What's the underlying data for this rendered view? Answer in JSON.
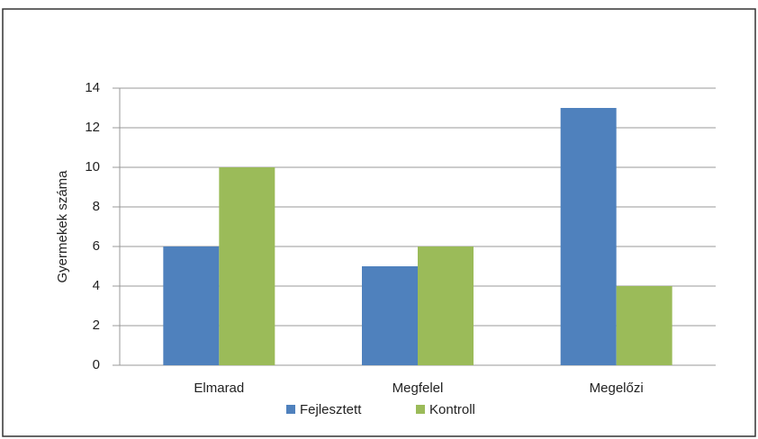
{
  "chart_data": {
    "type": "bar",
    "ylabel": "Gyermekek száma",
    "categories": [
      "Elmarad",
      "Megfelel",
      "Megelőzi"
    ],
    "series": [
      {
        "name": "Fejlesztett",
        "color": "#4f81bd",
        "values": [
          6,
          5,
          13
        ]
      },
      {
        "name": "Kontroll",
        "color": "#9bbb59",
        "values": [
          10,
          6,
          4
        ]
      }
    ],
    "ylim": [
      0,
      14
    ],
    "yticks": [
      0,
      2,
      4,
      6,
      8,
      10,
      12,
      14
    ],
    "grid": true,
    "legend": "bottom"
  }
}
